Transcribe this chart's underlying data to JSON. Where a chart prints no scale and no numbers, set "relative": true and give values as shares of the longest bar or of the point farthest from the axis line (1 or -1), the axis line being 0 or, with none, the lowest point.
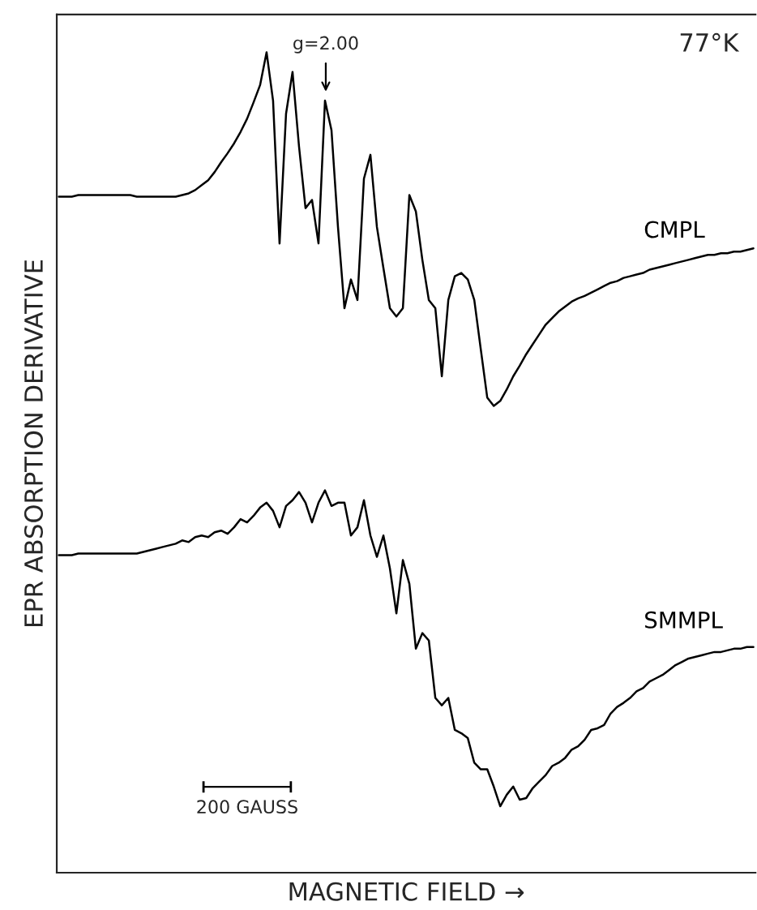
{
  "chart_data": {
    "type": "line",
    "relative": true,
    "xlabel": "MAGNETIC FIELD →",
    "ylabel": "EPR ABSORPTION DERIVATIVE",
    "categories": [
      null,
      null,
      null,
      null,
      null,
      null,
      null,
      null,
      null,
      null,
      null,
      null,
      null,
      null,
      null,
      null,
      null,
      null,
      null,
      null,
      null,
      null,
      null,
      null,
      null,
      null,
      null,
      null,
      null,
      null,
      null,
      null,
      null,
      null,
      null,
      null,
      null,
      null,
      null,
      null,
      null,
      null,
      null,
      null,
      null,
      null,
      null,
      null,
      null,
      null,
      null,
      null,
      null,
      null,
      null,
      null,
      null,
      null,
      null,
      null,
      null,
      null,
      null,
      null,
      null,
      null,
      null,
      null,
      null,
      null,
      null,
      null,
      null,
      null,
      null,
      null,
      null,
      null,
      null,
      null,
      null,
      null,
      null,
      null,
      null,
      null,
      null,
      null,
      null,
      null,
      null,
      null,
      null,
      null,
      null,
      null,
      null,
      null,
      null,
      null,
      null,
      null,
      null,
      null,
      null,
      null,
      null,
      null
    ],
    "series": [
      {
        "name": "CMPL",
        "color": "#000000",
        "values": [
          0.824,
          0.824,
          0.824,
          0.826,
          0.826,
          0.826,
          0.826,
          0.826,
          0.826,
          0.826,
          0.826,
          0.826,
          0.824,
          0.824,
          0.824,
          0.824,
          0.824,
          0.824,
          0.824,
          0.826,
          0.828,
          0.832,
          0.838,
          0.844,
          0.854,
          0.866,
          0.877,
          0.889,
          0.903,
          0.919,
          0.939,
          0.96,
          1.0,
          0.941,
          0.767,
          0.925,
          0.976,
          0.885,
          0.81,
          0.82,
          0.767,
          0.941,
          0.905,
          0.787,
          0.688,
          0.723,
          0.698,
          0.846,
          0.875,
          0.787,
          0.737,
          0.688,
          0.678,
          0.688,
          0.826,
          0.806,
          0.747,
          0.698,
          0.688,
          0.605,
          0.698,
          0.727,
          0.731,
          0.723,
          0.698,
          0.638,
          0.579,
          0.569,
          0.575,
          0.589,
          0.605,
          0.618,
          0.632,
          0.644,
          0.656,
          0.668,
          0.676,
          0.684,
          0.69,
          0.696,
          0.7,
          0.703,
          0.707,
          0.711,
          0.715,
          0.719,
          0.721,
          0.725,
          0.727,
          0.729,
          0.731,
          0.735,
          0.737,
          0.739,
          0.741,
          0.743,
          0.745,
          0.747,
          0.749,
          0.751,
          0.753,
          0.753,
          0.755,
          0.755,
          0.757,
          0.757,
          0.759,
          0.761
        ]
      },
      {
        "name": "SMMPL",
        "color": "#000000",
        "values": [
          0.387,
          0.387,
          0.387,
          0.389,
          0.389,
          0.389,
          0.389,
          0.389,
          0.389,
          0.389,
          0.389,
          0.389,
          0.389,
          0.391,
          0.393,
          0.395,
          0.397,
          0.399,
          0.401,
          0.405,
          0.403,
          0.409,
          0.411,
          0.409,
          0.415,
          0.417,
          0.413,
          0.421,
          0.431,
          0.427,
          0.435,
          0.445,
          0.451,
          0.441,
          0.421,
          0.447,
          0.454,
          0.464,
          0.451,
          0.427,
          0.451,
          0.466,
          0.447,
          0.451,
          0.451,
          0.411,
          0.421,
          0.454,
          0.411,
          0.385,
          0.411,
          0.371,
          0.316,
          0.381,
          0.352,
          0.273,
          0.292,
          0.283,
          0.213,
          0.204,
          0.213,
          0.174,
          0.17,
          0.164,
          0.134,
          0.126,
          0.126,
          0.105,
          0.081,
          0.095,
          0.105,
          0.089,
          0.091,
          0.103,
          0.111,
          0.119,
          0.13,
          0.134,
          0.14,
          0.15,
          0.154,
          0.162,
          0.174,
          0.176,
          0.18,
          0.194,
          0.202,
          0.207,
          0.213,
          0.221,
          0.225,
          0.233,
          0.237,
          0.241,
          0.247,
          0.253,
          0.257,
          0.261,
          0.263,
          0.265,
          0.267,
          0.269,
          0.269,
          0.271,
          0.273,
          0.273,
          0.275,
          0.275
        ]
      }
    ],
    "annotations": [
      "77°K",
      "g=2.00",
      "200 GAUSS"
    ],
    "legend": false,
    "marker": "none",
    "line_style": "solid"
  }
}
